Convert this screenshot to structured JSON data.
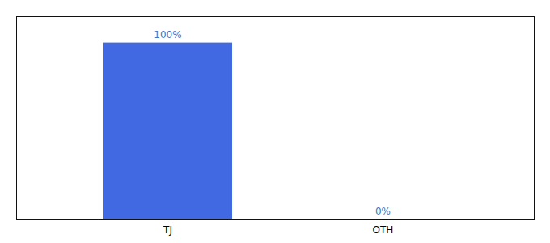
{
  "chart_data": {
    "type": "bar",
    "categories": [
      "TJ",
      "OTH"
    ],
    "values": [
      100,
      0
    ],
    "value_labels": [
      "100%",
      "0%"
    ],
    "color": "#4169e1",
    "ylim": [
      0,
      115
    ],
    "data_labels": true,
    "tick_labels": "x"
  }
}
